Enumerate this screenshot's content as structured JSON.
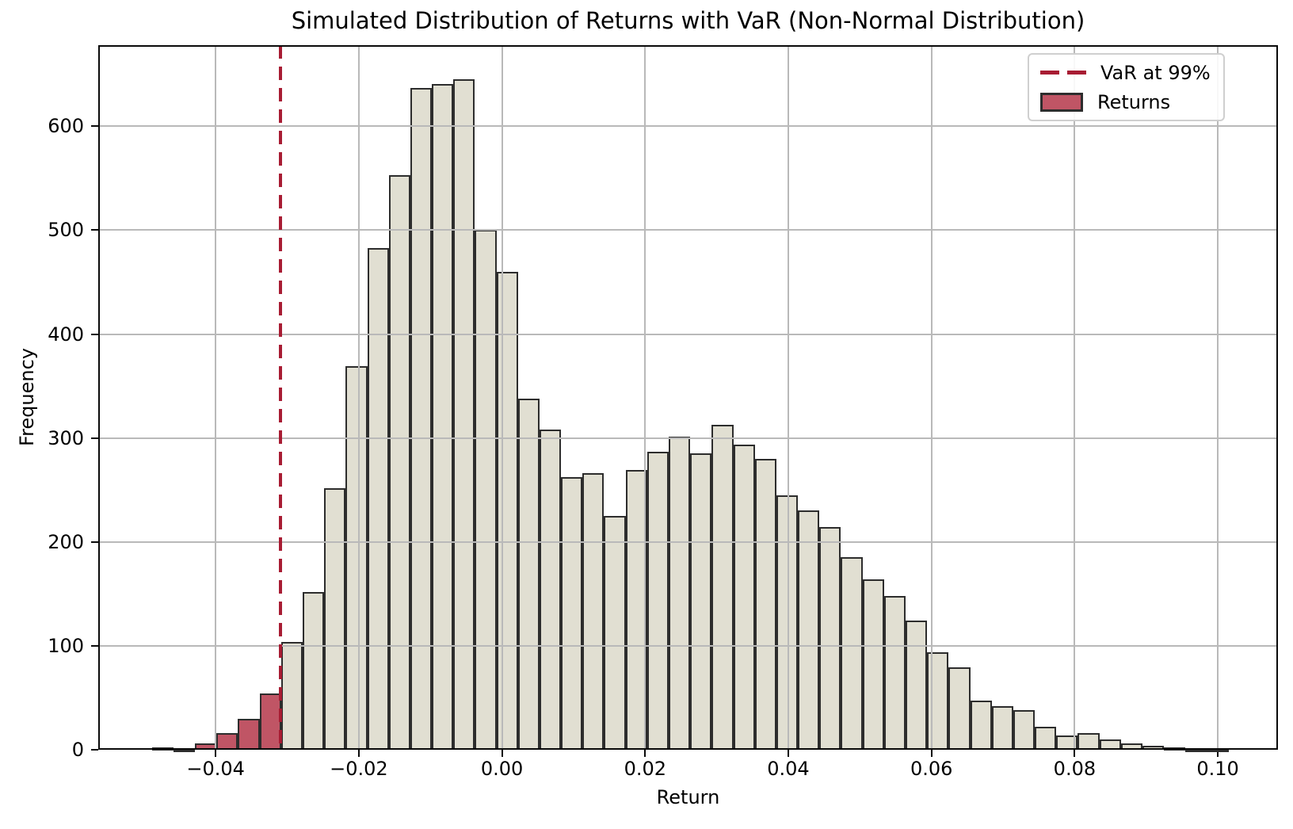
{
  "title": "Simulated Distribution of Returns with VaR (Non-Normal Distribution)",
  "x_axis_label": "Return",
  "y_axis_label": "Frequency",
  "legend": {
    "var_label": "VaR at 99%",
    "returns_label": "Returns"
  },
  "colors": {
    "bar_fill": "#e1dfd2",
    "tail_bar_fill": "#c05565",
    "bar_edge": "#2d2d2d",
    "var_line": "#a81c33",
    "grid": "#b9b9b9",
    "spine": "#0a0a0a",
    "legend_border": "#cfcfcf"
  },
  "chart_data": {
    "type": "bar",
    "subtype": "histogram",
    "title": "Simulated Distribution of Returns with VaR (Non-Normal Distribution)",
    "xlabel": "Return",
    "ylabel": "Frequency",
    "grid": true,
    "legend_position": "upper right",
    "legend_entries": [
      "VaR at 99%",
      "Returns"
    ],
    "bin_start": -0.0489,
    "bin_width": 0.003008,
    "counts": [
      2,
      1,
      6,
      16,
      30,
      54,
      104,
      152,
      252,
      369,
      483,
      553,
      637,
      641,
      645,
      500,
      460,
      338,
      308,
      262,
      266,
      225,
      269,
      287,
      301,
      285,
      313,
      294,
      280,
      245,
      230,
      214,
      185,
      164,
      148,
      124,
      94,
      79,
      47,
      42,
      38,
      22,
      14,
      16,
      10,
      6,
      4,
      2,
      1,
      1
    ],
    "var_at_99": -0.0309,
    "tail_threshold": -0.0309,
    "xlim": [
      -0.0564,
      0.1084
    ],
    "ylim": [
      0,
      678
    ],
    "xticks": [
      -0.04,
      -0.02,
      0.0,
      0.02,
      0.04,
      0.06,
      0.08,
      0.1
    ],
    "xtick_labels": [
      "−0.04",
      "−0.02",
      "0.00",
      "0.02",
      "0.04",
      "0.06",
      "0.08",
      "0.10"
    ],
    "yticks": [
      0,
      100,
      200,
      300,
      400,
      500,
      600
    ],
    "ytick_labels": [
      "0",
      "100",
      "200",
      "300",
      "400",
      "500",
      "600"
    ]
  }
}
